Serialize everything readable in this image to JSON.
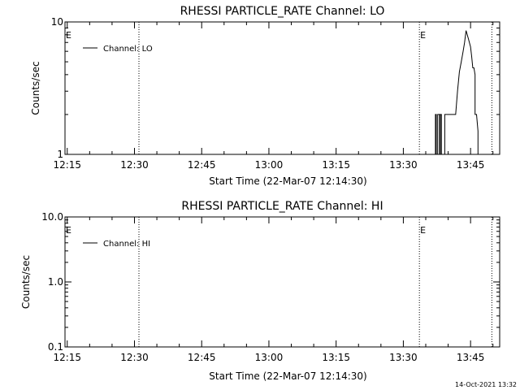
{
  "footer": {
    "timestamp": "14-Oct-2021 13:32"
  },
  "chart_data": [
    {
      "type": "line",
      "title": "RHESSI PARTICLE_RATE Channel: LO",
      "xlabel": "Start Time (22-Mar-07 12:14:30)",
      "ylabel": "Counts/sec",
      "xscale": "time",
      "yscale": "log",
      "xlim": [
        "12:14:30",
        "13:51:30"
      ],
      "ylim": [
        1,
        10
      ],
      "x_ticks": [
        "12:15",
        "12:30",
        "12:45",
        "13:00",
        "13:15",
        "13:30",
        "13:45"
      ],
      "y_ticks": [
        "1",
        "10"
      ],
      "legend": {
        "position": "top-left",
        "entries": [
          "Channel: LO"
        ]
      },
      "markers": [
        {
          "time": "12:31:00",
          "label": ""
        },
        {
          "time": "13:33:35",
          "label": "E"
        },
        {
          "time": "13:49:45",
          "label": ""
        }
      ],
      "left_edge_label": "E",
      "series": [
        {
          "name": "Channel: LO",
          "x": [
            "13:37:10",
            "13:37:10",
            "13:37:22",
            "13:37:22",
            "13:37:40",
            "13:37:40",
            "13:38:05",
            "13:38:05",
            "13:38:15",
            "13:38:15",
            "13:38:30",
            "13:38:30",
            "13:39:15",
            "13:39:15",
            "13:39:40",
            "13:40:05",
            "13:40:40",
            "13:41:10",
            "13:41:40",
            "13:42:05",
            "13:42:30",
            "13:42:55",
            "13:43:20",
            "13:43:40",
            "13:44:00",
            "13:44:30",
            "13:45:00",
            "13:45:15",
            "13:45:30",
            "13:45:45",
            "13:46:00",
            "13:46:00",
            "13:46:20",
            "13:46:40",
            "13:46:40",
            "13:47:30"
          ],
          "y": [
            1,
            2,
            2,
            1,
            1,
            2,
            2,
            1,
            1,
            2,
            2,
            1,
            1,
            2,
            2,
            2,
            2,
            2,
            2,
            3,
            4.2,
            5,
            6,
            7,
            8.6,
            7.5,
            6.5,
            5.5,
            4.5,
            4.5,
            4,
            2,
            2,
            1.5,
            1,
            1
          ]
        }
      ]
    },
    {
      "type": "line",
      "title": "RHESSI PARTICLE_RATE Channel: HI",
      "xlabel": "Start Time (22-Mar-07 12:14:30)",
      "ylabel": "Counts/sec",
      "xscale": "time",
      "yscale": "log",
      "xlim": [
        "12:14:30",
        "13:51:30"
      ],
      "ylim": [
        0.1,
        10
      ],
      "x_ticks": [
        "12:15",
        "12:30",
        "12:45",
        "13:00",
        "13:15",
        "13:30",
        "13:45"
      ],
      "y_ticks": [
        "0.1",
        "1.0",
        "10.0"
      ],
      "legend": {
        "position": "top-left",
        "entries": [
          "Channel: HI"
        ]
      },
      "markers": [
        {
          "time": "12:31:00",
          "label": ""
        },
        {
          "time": "13:33:35",
          "label": "E"
        },
        {
          "time": "13:49:45",
          "label": ""
        }
      ],
      "left_edge_label": "E",
      "series": [
        {
          "name": "Channel: HI",
          "x": [],
          "y": []
        }
      ]
    }
  ]
}
